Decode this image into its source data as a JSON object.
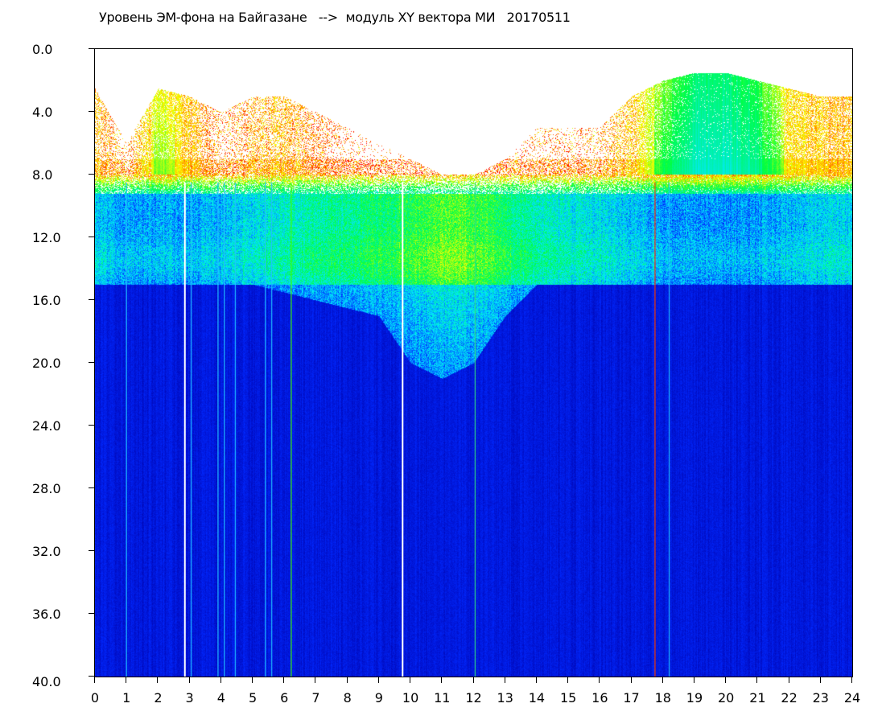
{
  "chart_data": {
    "type": "heatmap",
    "title": "Уровень ЭМ-фона на Байгазане   -->  модуль XY вектора МИ   20170511",
    "xlabel": "",
    "ylabel": "",
    "xlim": [
      0,
      24
    ],
    "ylim": [
      0,
      40
    ],
    "y_inverted": true,
    "x_ticks": [
      "0",
      "1",
      "2",
      "3",
      "4",
      "5",
      "6",
      "7",
      "8",
      "9",
      "10",
      "11",
      "12",
      "13",
      "14",
      "15",
      "16",
      "17",
      "18",
      "19",
      "20",
      "21",
      "22",
      "23",
      "24"
    ],
    "y_ticks": [
      "0.0",
      "4.0",
      "8.0",
      "12.0",
      "16.0",
      "20.0",
      "24.0",
      "28.0",
      "32.0",
      "36.0",
      "40.0"
    ],
    "colormap": [
      "#0000a8",
      "#0028ff",
      "#00e8ff",
      "#00ff40",
      "#ffff00",
      "#ff0000"
    ],
    "hours": [
      0,
      1,
      2,
      3,
      4,
      5,
      6,
      7,
      8,
      9,
      10,
      11,
      12,
      13,
      14,
      15,
      16,
      17,
      18,
      19,
      20,
      21,
      22,
      23,
      24
    ],
    "upper_region_top": [
      2.5,
      6,
      2.5,
      3,
      4,
      3,
      3,
      4,
      5,
      6,
      7,
      8,
      8,
      7,
      5,
      5,
      5,
      3,
      2,
      1.5,
      1.5,
      2,
      2.5,
      3,
      3
    ],
    "upper_region_density": [
      0.5,
      0.1,
      0.8,
      0.6,
      0.15,
      0.35,
      0.45,
      0.3,
      0.12,
      0.08,
      0.03,
      0.02,
      0.05,
      0.1,
      0.15,
      0.15,
      0.2,
      0.45,
      0.8,
      0.95,
      0.95,
      0.92,
      0.65,
      0.6,
      0.55
    ],
    "upper_region_level": [
      0.85,
      0.9,
      0.78,
      0.85,
      0.9,
      0.88,
      0.86,
      0.9,
      0.92,
      0.92,
      0.92,
      0.92,
      0.92,
      0.9,
      0.9,
      0.9,
      0.88,
      0.85,
      0.7,
      0.55,
      0.55,
      0.62,
      0.82,
      0.85,
      0.85
    ],
    "band_level_8_15": [
      0.38,
      0.33,
      0.34,
      0.34,
      0.36,
      0.42,
      0.46,
      0.5,
      0.52,
      0.56,
      0.6,
      0.66,
      0.64,
      0.56,
      0.48,
      0.44,
      0.42,
      0.38,
      0.32,
      0.32,
      0.32,
      0.33,
      0.36,
      0.4,
      0.4
    ],
    "band_bottom": [
      15,
      15,
      15,
      15,
      15,
      15,
      15.5,
      16,
      16.5,
      17,
      20,
      21,
      20,
      17,
      15,
      15,
      15,
      15,
      15,
      15,
      15,
      15,
      15,
      15,
      15
    ],
    "background_level": 0.12,
    "vertical_lines": [
      {
        "hour": 2.85,
        "color": "#ffffff"
      },
      {
        "hour": 9.75,
        "color": "#ffffff"
      },
      {
        "hour": 6.22,
        "color": "#40ff00"
      },
      {
        "hour": 17.75,
        "color": "#ff4000"
      },
      {
        "hour": 1.0,
        "color": "#20c0ff"
      },
      {
        "hour": 3.05,
        "color": "#20c0ff"
      },
      {
        "hour": 3.9,
        "color": "#20c0ff"
      },
      {
        "hour": 4.1,
        "color": "#20c0ff"
      },
      {
        "hour": 4.45,
        "color": "#20c0ff"
      },
      {
        "hour": 5.4,
        "color": "#20c0ff"
      },
      {
        "hour": 5.6,
        "color": "#20c0ff"
      },
      {
        "hour": 12.05,
        "color": "#30e080"
      },
      {
        "hour": 18.2,
        "color": "#20c0ff"
      }
    ]
  }
}
